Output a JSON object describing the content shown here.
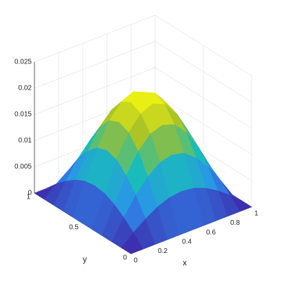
{
  "chart_data": {
    "type": "surface",
    "x": [
      0,
      0.1,
      0.2,
      0.3,
      0.4,
      0.5,
      0.6,
      0.7,
      0.8,
      0.9,
      1
    ],
    "y": [
      0,
      0.1,
      0.2,
      0.3,
      0.4,
      0.5,
      0.6,
      0.7,
      0.8,
      0.9,
      1
    ],
    "z": [
      [
        0,
        0,
        0,
        0,
        0,
        0,
        0,
        0,
        0,
        0,
        0
      ],
      [
        0,
        0.002,
        0.0037,
        0.0051,
        0.006,
        0.0063,
        0.006,
        0.0051,
        0.0037,
        0.002,
        0
      ],
      [
        0,
        0.0037,
        0.0071,
        0.0097,
        0.0115,
        0.0121,
        0.0115,
        0.0097,
        0.0071,
        0.0037,
        0
      ],
      [
        0,
        0.0051,
        0.0097,
        0.0134,
        0.0158,
        0.0166,
        0.0158,
        0.0134,
        0.0097,
        0.0051,
        0
      ],
      [
        0,
        0.006,
        0.0115,
        0.0158,
        0.0185,
        0.0195,
        0.0185,
        0.0158,
        0.0115,
        0.006,
        0
      ],
      [
        0,
        0.0063,
        0.0121,
        0.0166,
        0.0195,
        0.0205,
        0.0195,
        0.0166,
        0.0121,
        0.0063,
        0
      ],
      [
        0,
        0.006,
        0.0115,
        0.0158,
        0.0185,
        0.0195,
        0.0185,
        0.0158,
        0.0115,
        0.006,
        0
      ],
      [
        0,
        0.0051,
        0.0097,
        0.0134,
        0.0158,
        0.0166,
        0.0158,
        0.0134,
        0.0097,
        0.0051,
        0
      ],
      [
        0,
        0.0037,
        0.0071,
        0.0097,
        0.0115,
        0.0121,
        0.0115,
        0.0097,
        0.0071,
        0.0037,
        0
      ],
      [
        0,
        0.002,
        0.0037,
        0.0051,
        0.006,
        0.0063,
        0.006,
        0.0051,
        0.0037,
        0.002,
        0
      ],
      [
        0,
        0,
        0,
        0,
        0,
        0,
        0,
        0,
        0,
        0,
        0
      ]
    ],
    "xlim": [
      0,
      1
    ],
    "ylim": [
      0,
      1
    ],
    "zlim": [
      0,
      0.025
    ],
    "xticks": [
      0,
      0.2,
      0.4,
      0.6,
      0.8,
      1
    ],
    "yticks": [
      0,
      0.5,
      1
    ],
    "zticks": [
      0,
      0.005,
      0.01,
      0.015,
      0.02,
      0.025
    ],
    "xlabel": "x",
    "ylabel": "y",
    "grid": true,
    "colormap": [
      "#3e26a8",
      "#2d8ef0",
      "#18bfb5",
      "#a5be2a",
      "#f9fb0e"
    ]
  }
}
